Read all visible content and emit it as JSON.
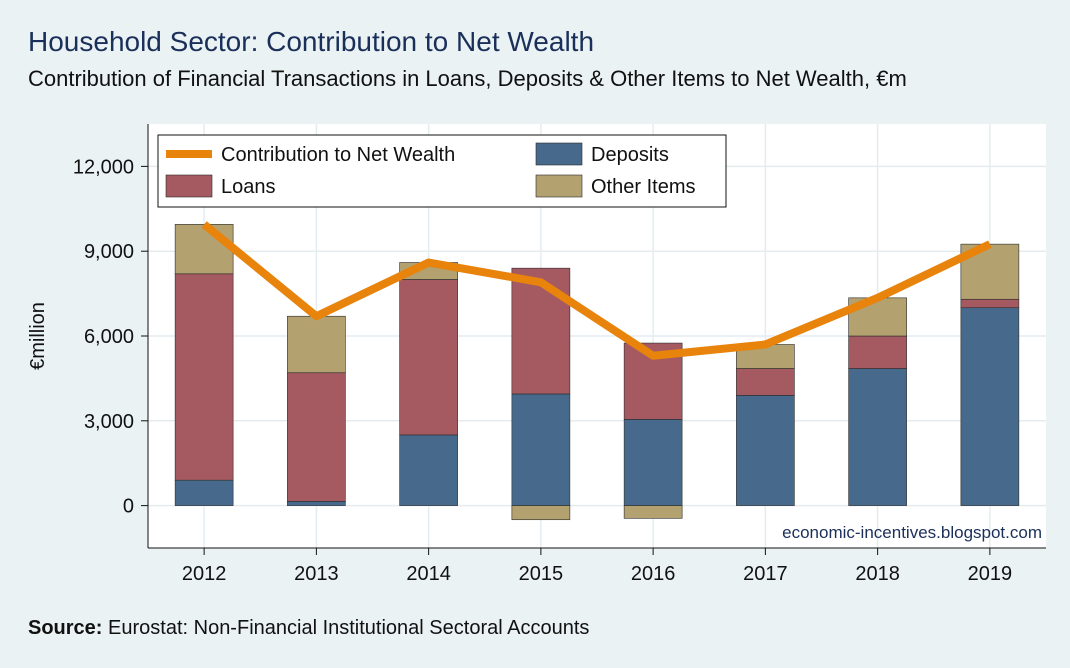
{
  "title": "Household Sector: Contribution to Net Wealth",
  "subtitle": "Contribution of Financial Transactions in Loans, Deposits & Other Items to Net Wealth, €m",
  "source_label": "Source:",
  "source_text": " Eurostat: Non-Financial Institutional Sectoral Accounts",
  "watermark": "economic-incentives.blogspot.com",
  "colors": {
    "deposits": "#476a8c",
    "loans": "#a55a61",
    "other": "#b3a170",
    "line": "#e8830c",
    "plot_bg": "#ffffff",
    "grid": "#e4ecef"
  },
  "chart_data": {
    "type": "bar",
    "stacked": true,
    "ylabel": "€million",
    "ylim": [
      -1500,
      13500
    ],
    "yticks": [
      0,
      3000,
      6000,
      9000,
      12000
    ],
    "ytick_labels": [
      "0",
      "3,000",
      "6,000",
      "9,000",
      "12,000"
    ],
    "categories": [
      "2012",
      "2013",
      "2014",
      "2015",
      "2016",
      "2017",
      "2018",
      "2019"
    ],
    "series": [
      {
        "name": "Deposits",
        "key": "deposits",
        "values": [
          900,
          150,
          2500,
          3950,
          3050,
          3900,
          4850,
          7000
        ]
      },
      {
        "name": "Loans",
        "key": "loans",
        "values": [
          7300,
          4550,
          5500,
          4450,
          2700,
          950,
          1150,
          300
        ]
      },
      {
        "name": "Other Items",
        "key": "other",
        "values": [
          1750,
          2000,
          600,
          -500,
          -450,
          850,
          1350,
          1950
        ]
      }
    ],
    "line": {
      "name": "Contribution to Net Wealth",
      "values": [
        9950,
        6700,
        8600,
        7900,
        5300,
        5700,
        7350,
        9250
      ]
    },
    "legend": {
      "position": "top-left",
      "entries": [
        {
          "label": "Contribution to Net Wealth",
          "kind": "line",
          "key": "line"
        },
        {
          "label": "Deposits",
          "kind": "box",
          "key": "deposits"
        },
        {
          "label": "Loans",
          "kind": "box",
          "key": "loans"
        },
        {
          "label": "Other Items",
          "kind": "box",
          "key": "other"
        }
      ]
    }
  }
}
